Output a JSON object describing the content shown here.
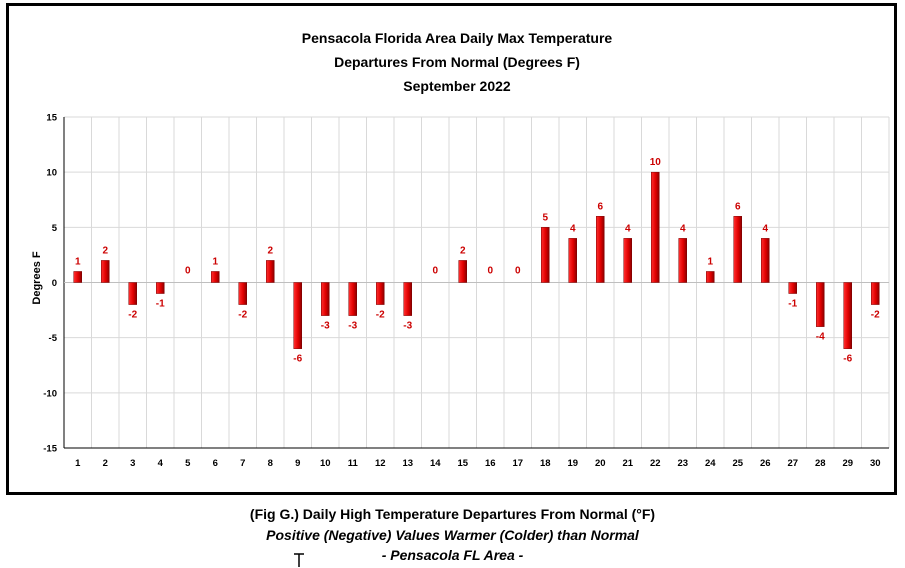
{
  "chart_data": {
    "type": "bar",
    "title_lines": [
      "Pensacola Florida Area Daily Max Temperature",
      "Departures From Normal (Degrees F)",
      "September 2022"
    ],
    "xlabel": "",
    "ylabel": "Degrees F",
    "ylim": [
      -15,
      15
    ],
    "yticks": [
      -15,
      -10,
      -5,
      0,
      5,
      10,
      15
    ],
    "grid": true,
    "legend": "none",
    "categories": [
      "1",
      "2",
      "3",
      "4",
      "5",
      "6",
      "7",
      "8",
      "9",
      "10",
      "11",
      "12",
      "13",
      "14",
      "15",
      "16",
      "17",
      "18",
      "19",
      "20",
      "21",
      "22",
      "23",
      "24",
      "25",
      "26",
      "27",
      "28",
      "29",
      "30"
    ],
    "values": [
      1,
      2,
      -2,
      -1,
      0,
      1,
      -2,
      2,
      -6,
      -3,
      -3,
      -2,
      -3,
      0,
      2,
      0,
      0,
      5,
      4,
      6,
      4,
      10,
      4,
      1,
      6,
      4,
      -1,
      -4,
      -6,
      -2
    ],
    "bar_color": "#e00000",
    "label_color": "#cc0000"
  },
  "caption": {
    "line1": "(Fig G.) Daily High Temperature Departures From Normal (°F)",
    "line2": "Positive (Negative) Values Warmer (Colder) than Normal",
    "line3": "- Pensacola FL Area -"
  }
}
